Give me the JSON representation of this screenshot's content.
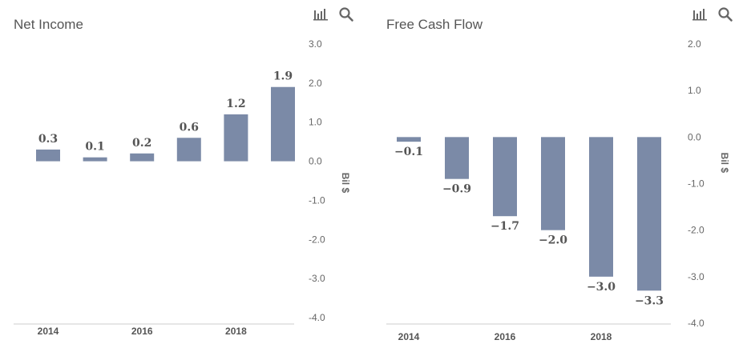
{
  "toolbar": {
    "icons": [
      "bar-chart-icon",
      "search-icon"
    ]
  },
  "colors": {
    "bar": "#7b8aa7",
    "axis": "#cccccc",
    "text": "#555555"
  },
  "chart_data": [
    {
      "type": "bar",
      "title": "Net Income",
      "x": [
        2014,
        2015,
        2016,
        2017,
        2018,
        2019
      ],
      "x_tick_labels": [
        "2014",
        "2016",
        "2018"
      ],
      "values": [
        0.3,
        0.1,
        0.2,
        0.6,
        1.2,
        1.9
      ],
      "value_labels": [
        "0.3",
        "0.1",
        "0.2",
        "0.6",
        "1.2",
        "1.9"
      ],
      "y_ticks": [
        3,
        2,
        1,
        0,
        -1,
        -2,
        -3,
        -4
      ],
      "y_tick_labels": [
        "3.0",
        "2.0",
        "1.0",
        "0.0",
        "-1.0",
        "-2.0",
        "-3.0",
        "-4.0"
      ],
      "ylim": [
        -4,
        3
      ],
      "ylabel": "Bil $",
      "grid": false
    },
    {
      "type": "bar",
      "title": "Free Cash Flow",
      "x": [
        2014,
        2015,
        2016,
        2017,
        2018,
        2019
      ],
      "x_tick_labels": [
        "2014",
        "2016",
        "2018"
      ],
      "values": [
        -0.1,
        -0.9,
        -1.7,
        -2.0,
        -3.0,
        -3.3
      ],
      "value_labels": [
        "−0.1",
        "−0.9",
        "−1.7",
        "−2.0",
        "−3.0",
        "−3.3"
      ],
      "y_ticks": [
        2,
        1,
        0,
        -1,
        -2,
        -3,
        -4
      ],
      "y_tick_labels": [
        "2.0",
        "1.0",
        "0.0",
        "-1.0",
        "-2.0",
        "-3.0",
        "-4.0"
      ],
      "ylim": [
        -4,
        2
      ],
      "ylabel": "Bil $",
      "grid": false
    }
  ]
}
